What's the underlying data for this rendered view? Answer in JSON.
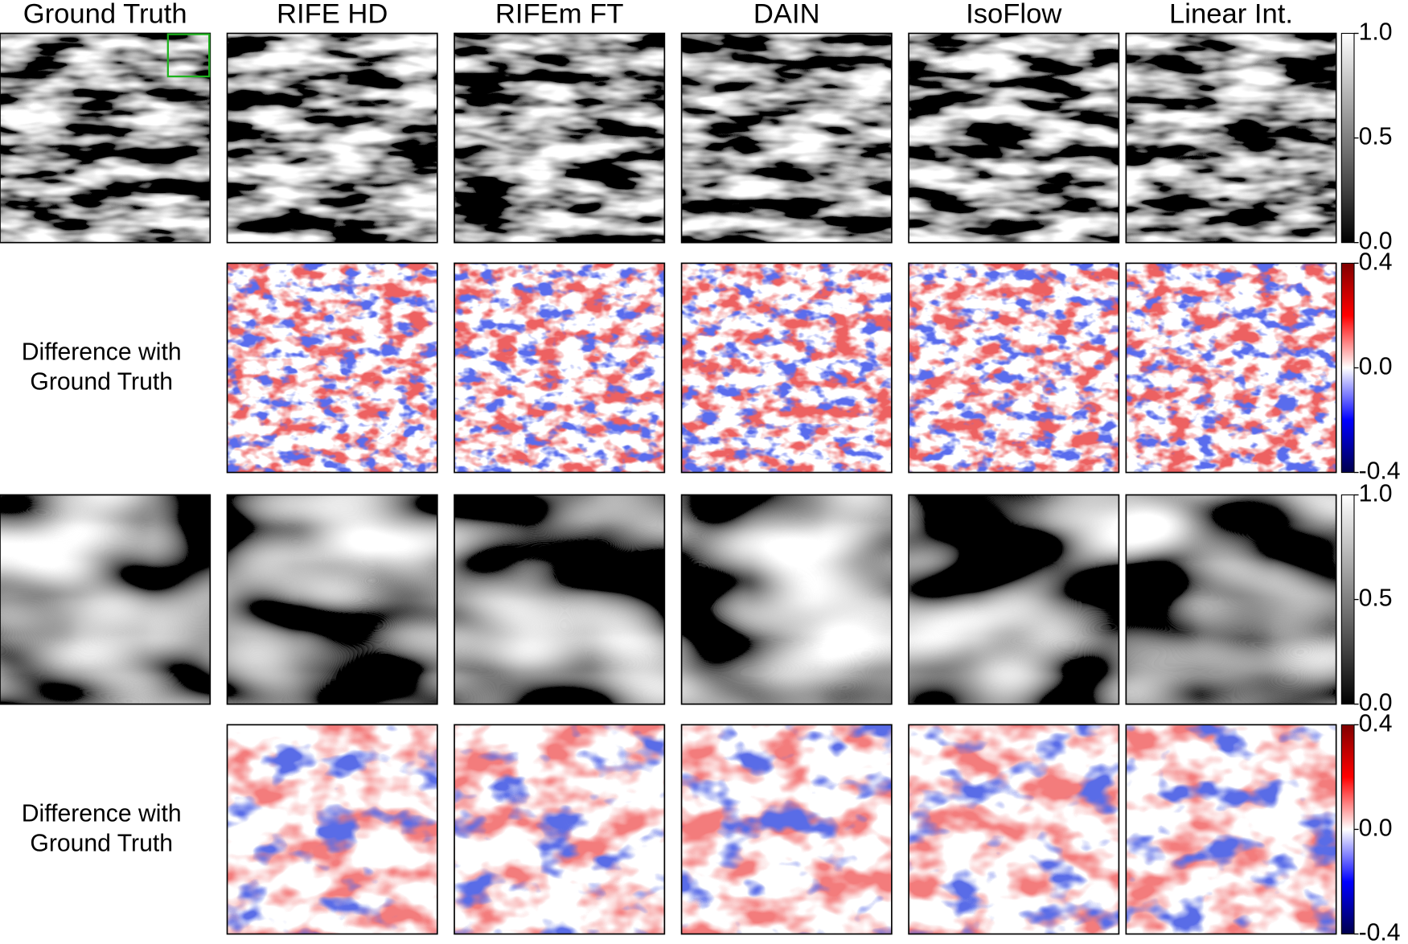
{
  "columns": [
    "Ground Truth",
    "RIFE HD",
    "RIFEm FT",
    "DAIN",
    "IsoFlow",
    "Linear Int."
  ],
  "row_labels": [
    [
      "Difference with",
      "Ground Truth"
    ],
    [
      "Difference with",
      "Ground Truth"
    ]
  ],
  "colorbars": [
    {
      "vlim": [
        0,
        1
      ],
      "ticks": [
        {
          "value": 0,
          "label": "0.0"
        },
        {
          "value": 0.5,
          "label": "0.5"
        },
        {
          "value": 1,
          "label": "1.0"
        }
      ]
    },
    {
      "vlim": [
        -0.4,
        0.4
      ],
      "ticks": [
        {
          "value": -0.4,
          "label": "-0.4"
        },
        {
          "value": 0,
          "label": "0.0"
        },
        {
          "value": 0.4,
          "label": "0.4"
        }
      ]
    },
    {
      "vlim": [
        0,
        1
      ],
      "ticks": [
        {
          "value": 0,
          "label": "0.0"
        },
        {
          "value": 0.5,
          "label": "0.5"
        },
        {
          "value": 1,
          "label": "1.0"
        }
      ]
    },
    {
      "vlim": [
        -0.4,
        0.4
      ],
      "ticks": [
        {
          "value": -0.4,
          "label": "-0.4"
        },
        {
          "value": 0,
          "label": "0.0"
        },
        {
          "value": 0.4,
          "label": "0.4"
        }
      ]
    }
  ]
}
